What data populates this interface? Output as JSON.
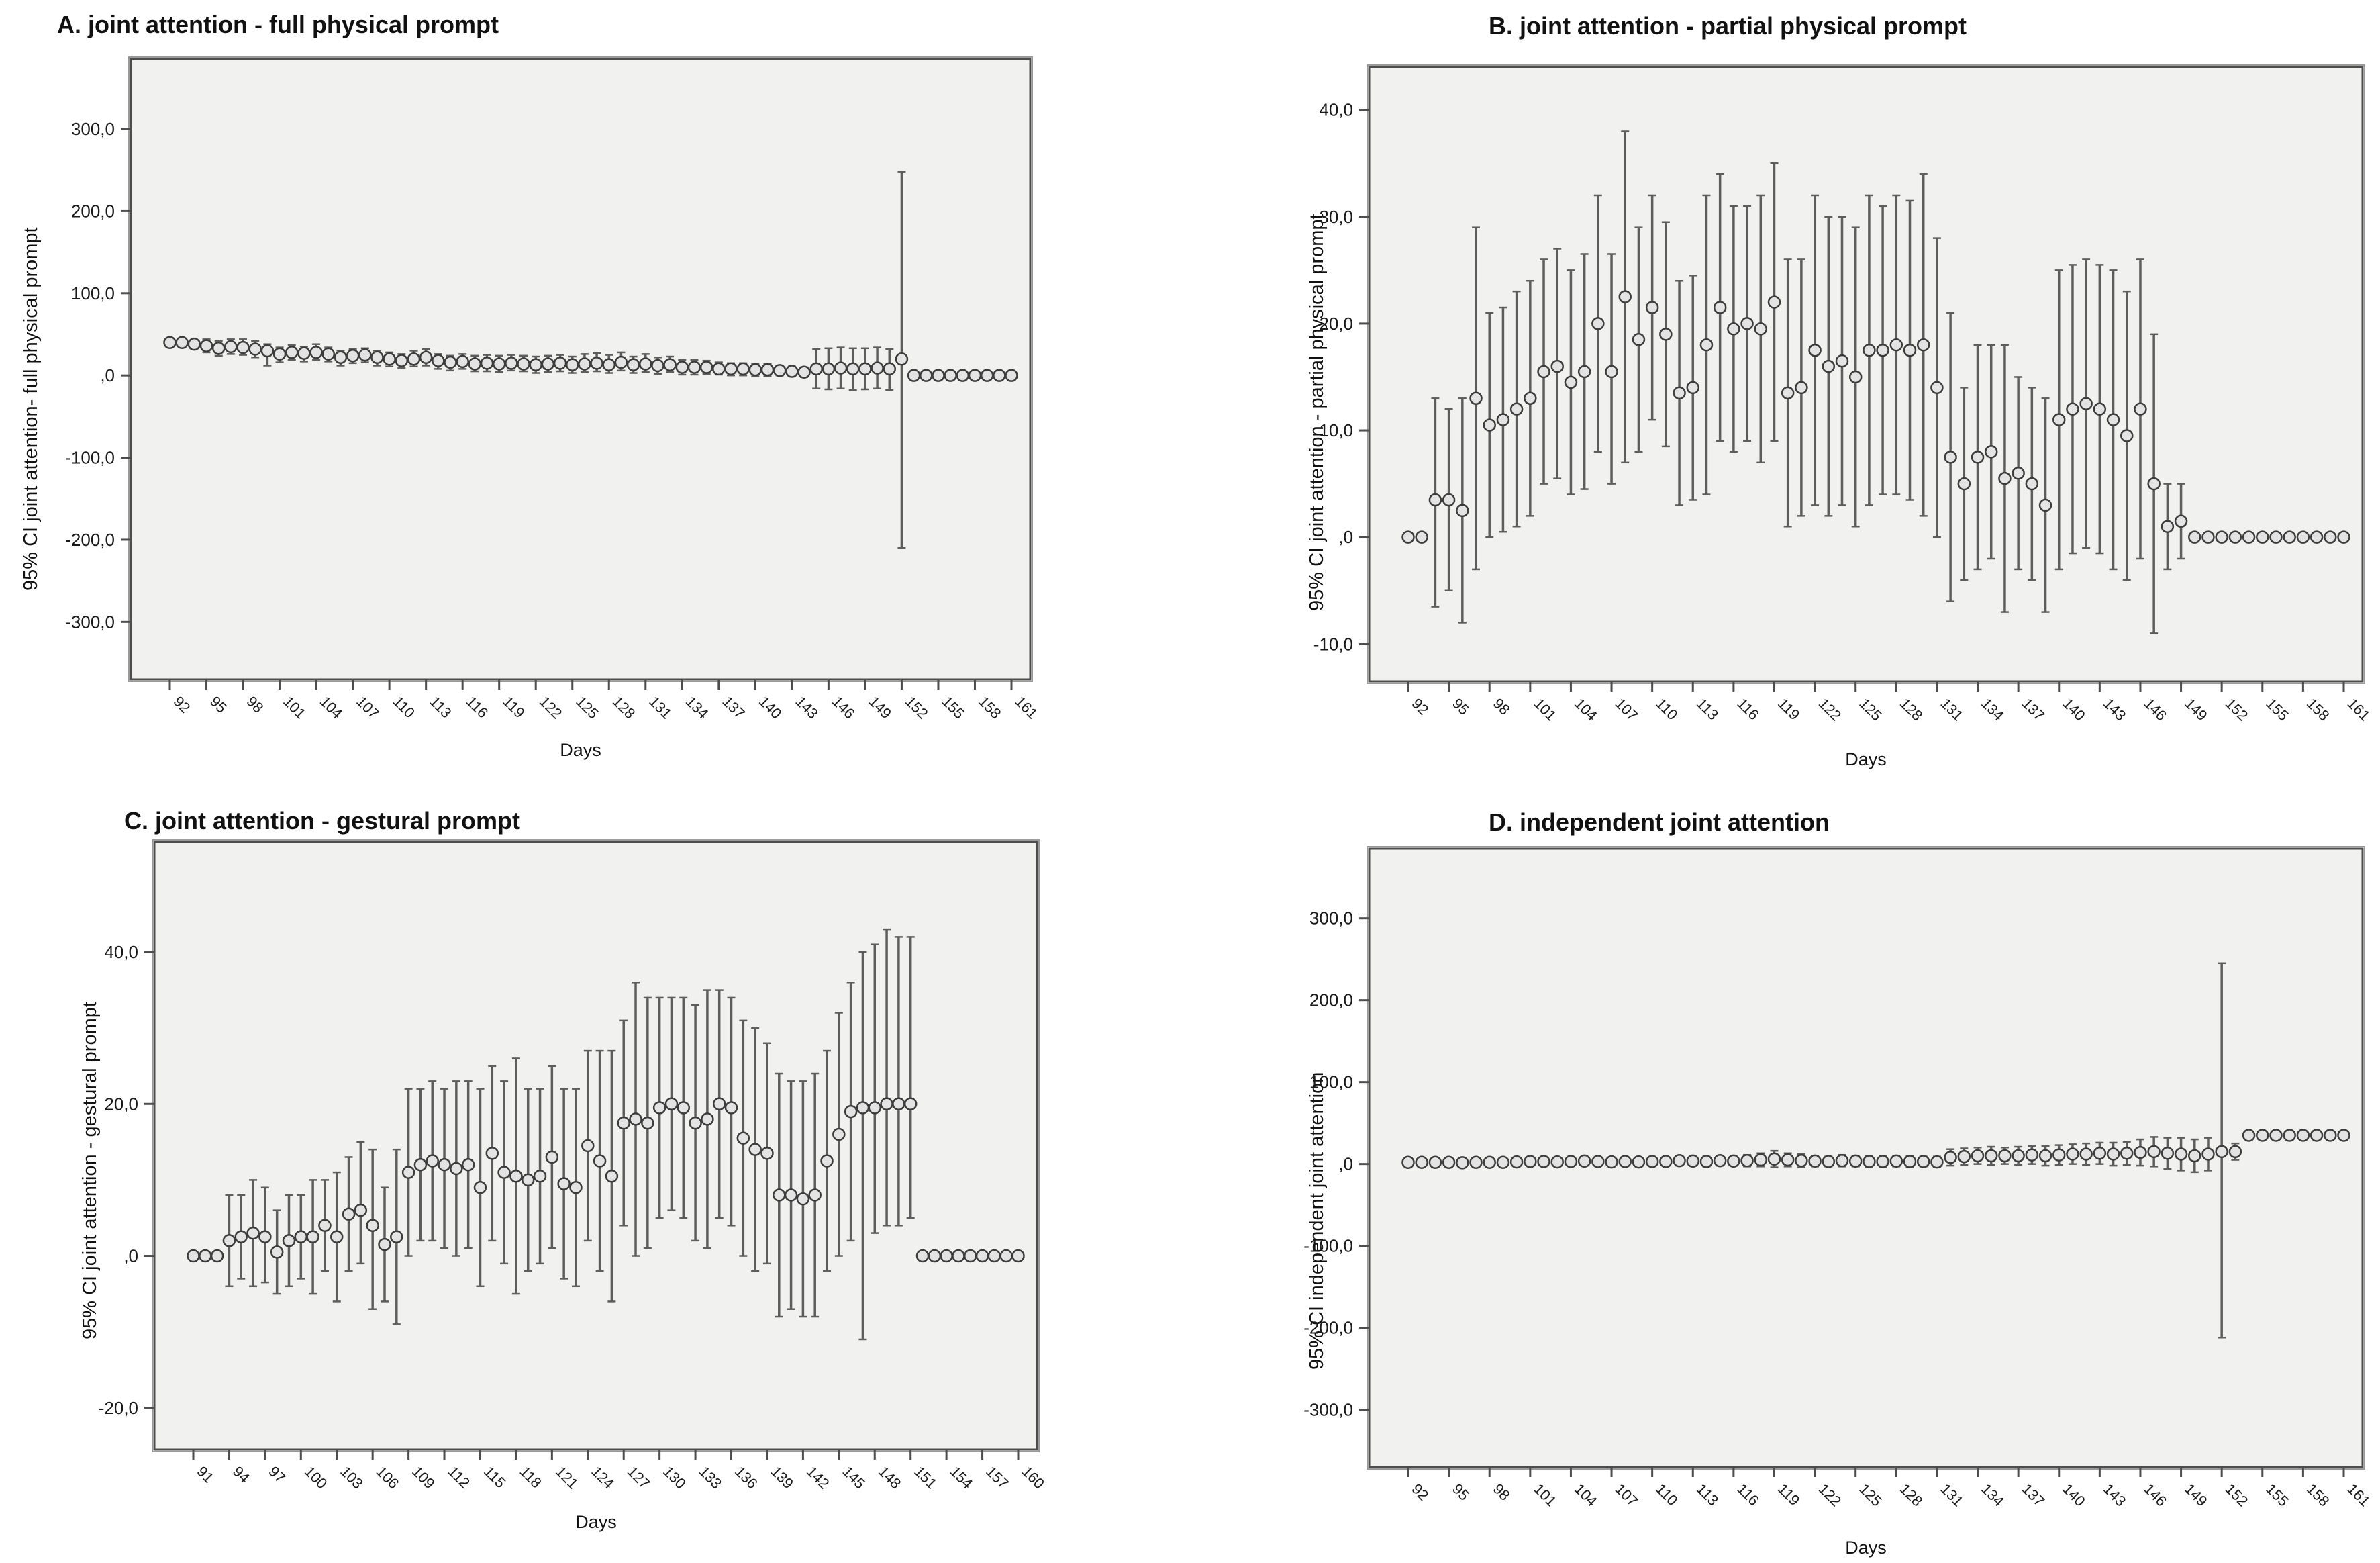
{
  "figure": {
    "kind": "spss-errorbar-figure",
    "background": "#ffffff"
  },
  "style": {
    "plot_bg": "#f1f1f0",
    "frame": "#4d4d4d",
    "bar": "#5d5d5d",
    "marker_fill": "#e3e3e3",
    "marker_stroke": "#3c3c3c",
    "text": "#1a1a1a"
  },
  "chart_data": [
    {
      "type": "errorbar",
      "panel": "A",
      "title": "A. joint attention - full physical prompt",
      "ylabel": "95% CI joint attention- full physical prompt",
      "xlabel": "Days",
      "ylim": [
        -370,
        385
      ],
      "grid": false,
      "legend": "none",
      "yticks": [
        {
          "v": 300,
          "label": "300,0"
        },
        {
          "v": 200,
          "label": "200,0"
        },
        {
          "v": 100,
          "label": "100,0"
        },
        {
          "v": 0,
          "label": ",0"
        },
        {
          "v": -100,
          "label": "-100,0"
        },
        {
          "v": -200,
          "label": "-200,0"
        },
        {
          "v": -300,
          "label": "-300,0"
        }
      ],
      "tick_every": 3,
      "days": [
        92,
        93,
        94,
        95,
        96,
        97,
        98,
        99,
        100,
        101,
        102,
        103,
        104,
        105,
        106,
        107,
        108,
        109,
        110,
        111,
        112,
        113,
        114,
        115,
        116,
        117,
        118,
        119,
        120,
        121,
        122,
        123,
        124,
        125,
        126,
        127,
        128,
        129,
        130,
        131,
        132,
        133,
        134,
        135,
        136,
        137,
        138,
        139,
        140,
        141,
        142,
        143,
        144,
        145,
        146,
        147,
        148,
        149,
        150,
        151,
        152,
        153,
        154,
        155,
        156,
        157,
        158,
        159,
        160,
        161
      ],
      "mean": [
        40,
        40,
        38,
        36,
        33,
        35,
        34,
        32,
        30,
        26,
        28,
        27,
        28,
        26,
        22,
        24,
        25,
        22,
        20,
        18,
        20,
        22,
        18,
        16,
        17,
        14,
        15,
        14,
        15,
        14,
        13,
        14,
        15,
        13,
        14,
        15,
        13,
        16,
        13,
        14,
        12,
        13,
        10,
        10,
        10,
        8,
        8,
        8,
        7,
        7,
        6,
        5,
        4,
        8,
        8,
        9,
        8,
        8,
        9,
        8,
        20,
        0,
        0,
        0,
        0,
        0,
        0,
        0,
        0,
        0
      ],
      "lo": [
        40,
        40,
        38,
        28,
        24,
        26,
        25,
        22,
        12,
        16,
        19,
        17,
        19,
        17,
        12,
        15,
        16,
        12,
        11,
        9,
        11,
        12,
        8,
        6,
        8,
        5,
        5,
        4,
        6,
        5,
        3,
        4,
        5,
        3,
        4,
        5,
        3,
        6,
        3,
        4,
        2,
        4,
        1,
        1,
        2,
        1,
        0,
        0,
        -1,
        -1,
        0,
        -1,
        -2,
        -16,
        -17,
        -16,
        -18,
        -17,
        -16,
        -18,
        -210,
        0,
        0,
        0,
        0,
        0,
        0,
        0,
        0,
        0
      ],
      "hi": [
        40,
        40,
        38,
        44,
        42,
        44,
        44,
        42,
        38,
        34,
        37,
        35,
        38,
        34,
        30,
        32,
        33,
        30,
        28,
        26,
        30,
        32,
        26,
        24,
        26,
        24,
        25,
        24,
        25,
        24,
        23,
        24,
        25,
        23,
        26,
        27,
        25,
        28,
        23,
        26,
        22,
        23,
        19,
        19,
        18,
        16,
        15,
        15,
        14,
        14,
        12,
        11,
        10,
        32,
        33,
        34,
        33,
        33,
        34,
        32,
        248,
        0,
        0,
        0,
        0,
        0,
        0,
        0,
        0,
        0
      ]
    },
    {
      "type": "errorbar",
      "panel": "B",
      "title": "B. joint attention - partial physical prompt",
      "ylabel": "95% CI joint attention - partial physical prompt",
      "xlabel": "Days",
      "ylim": [
        -13.5,
        44
      ],
      "grid": false,
      "legend": "none",
      "yticks": [
        {
          "v": 40,
          "label": "40,0"
        },
        {
          "v": 30,
          "label": "30,0"
        },
        {
          "v": 20,
          "label": "20,0"
        },
        {
          "v": 10,
          "label": "10,0"
        },
        {
          "v": 0,
          "label": ",0"
        },
        {
          "v": -10,
          "label": "-10,0"
        }
      ],
      "tick_every": 3,
      "days": [
        92,
        93,
        94,
        95,
        96,
        97,
        98,
        99,
        100,
        101,
        102,
        103,
        104,
        105,
        106,
        107,
        108,
        109,
        110,
        111,
        112,
        113,
        114,
        115,
        116,
        117,
        118,
        119,
        120,
        121,
        122,
        123,
        124,
        125,
        126,
        127,
        128,
        129,
        130,
        131,
        132,
        133,
        134,
        135,
        136,
        137,
        138,
        139,
        140,
        141,
        142,
        143,
        144,
        145,
        146,
        147,
        148,
        149,
        150,
        151,
        152,
        153,
        154,
        155,
        156,
        157,
        158,
        159,
        160,
        161
      ],
      "mean": [
        0,
        0,
        3.5,
        3.5,
        2.5,
        13,
        10.5,
        11,
        12,
        13,
        15.5,
        16,
        14.5,
        15.5,
        20,
        15.5,
        22.5,
        18.5,
        21.5,
        19,
        13.5,
        14,
        18,
        21.5,
        19.5,
        20,
        19.5,
        22,
        13.5,
        14,
        17.5,
        16,
        16.5,
        15,
        17.5,
        17.5,
        18,
        17.5,
        18,
        14,
        7.5,
        5,
        7.5,
        8,
        5.5,
        6,
        5,
        3,
        11,
        12,
        12.5,
        12,
        11,
        9.5,
        12,
        5,
        1,
        1.5,
        0,
        0,
        0,
        0,
        0,
        0,
        0,
        0,
        0,
        0,
        0,
        0
      ],
      "lo": [
        0,
        0,
        -6.5,
        -5,
        -8,
        -3,
        0,
        0.5,
        1,
        2,
        5,
        5.5,
        4,
        4.5,
        8,
        5,
        7,
        8,
        11,
        8.5,
        3,
        3.5,
        4,
        9,
        8,
        9,
        7,
        9,
        1,
        2,
        3,
        2,
        3,
        1,
        3,
        4,
        4,
        3.5,
        2,
        0,
        -6,
        -4,
        -3,
        -2,
        -7,
        -3,
        -4,
        -7,
        -3,
        -1.5,
        -1,
        -1.5,
        -3,
        -4,
        -2,
        -9,
        -3,
        -2,
        0,
        0,
        0,
        0,
        0,
        0,
        0,
        0,
        0,
        0,
        0,
        0
      ],
      "hi": [
        0,
        0,
        13,
        12,
        13,
        29,
        21,
        21.5,
        23,
        24,
        26,
        27,
        25,
        26.5,
        32,
        26.5,
        38,
        29,
        32,
        29.5,
        24,
        24.5,
        32,
        34,
        31,
        31,
        32,
        35,
        26,
        26,
        32,
        30,
        30,
        29,
        32,
        31,
        32,
        31.5,
        34,
        28,
        21,
        14,
        18,
        18,
        18,
        15,
        14,
        13,
        25,
        25.5,
        26,
        25.5,
        25,
        23,
        26,
        19,
        5,
        5,
        0,
        0,
        0,
        0,
        0,
        0,
        0,
        0,
        0,
        0,
        0,
        0
      ]
    },
    {
      "type": "errorbar",
      "panel": "C",
      "title": "C. joint attention - gestural prompt",
      "ylabel": "95% CI joint attention - gestural prompt",
      "xlabel": "Days",
      "ylim": [
        -25.5,
        54.5
      ],
      "grid": false,
      "legend": "none",
      "yticks": [
        {
          "v": 40,
          "label": "40,0"
        },
        {
          "v": 20,
          "label": "20,0"
        },
        {
          "v": 0,
          "label": ",0"
        },
        {
          "v": -20,
          "label": "-20,0"
        }
      ],
      "tick_every": 3,
      "days": [
        91,
        92,
        93,
        94,
        95,
        96,
        97,
        98,
        99,
        100,
        101,
        102,
        103,
        104,
        105,
        106,
        107,
        108,
        109,
        110,
        111,
        112,
        113,
        114,
        115,
        116,
        117,
        118,
        119,
        120,
        121,
        122,
        123,
        124,
        125,
        126,
        127,
        128,
        129,
        130,
        131,
        132,
        133,
        134,
        135,
        136,
        137,
        138,
        139,
        140,
        141,
        142,
        143,
        144,
        145,
        146,
        147,
        148,
        149,
        150,
        151,
        152,
        153,
        154,
        155,
        156,
        157,
        158,
        159,
        160
      ],
      "mean": [
        0,
        0,
        0,
        2,
        2.5,
        3,
        2.5,
        0.5,
        2,
        2.5,
        2.5,
        4,
        2.5,
        5.5,
        6,
        4,
        1.5,
        2.5,
        11,
        12,
        12.5,
        12,
        11.5,
        12,
        9,
        13.5,
        11,
        10.5,
        10,
        10.5,
        13,
        9.5,
        9,
        14.5,
        12.5,
        10.5,
        17.5,
        18,
        17.5,
        19.5,
        20,
        19.5,
        17.5,
        18,
        20,
        19.5,
        15.5,
        14,
        13.5,
        8,
        8,
        7.5,
        8,
        12.5,
        16,
        19,
        19.5,
        19.5,
        20,
        20,
        20,
        0,
        0,
        0,
        0,
        0,
        0,
        0,
        0,
        0
      ],
      "lo": [
        0,
        0,
        0,
        -4,
        -3,
        -4,
        -3.5,
        -5,
        -4,
        -3,
        -5,
        -2,
        -6,
        -2,
        -1,
        -7,
        -6,
        -9,
        0,
        2,
        2,
        1,
        0,
        1,
        -4,
        2,
        -1,
        -5,
        -2,
        -1,
        1,
        -3,
        -4,
        2,
        -2,
        -6,
        4,
        0,
        1,
        5,
        6,
        5,
        2,
        1,
        5,
        4,
        0,
        -2,
        -1,
        -8,
        -7,
        -8,
        -8,
        -2,
        0,
        2,
        -11,
        3,
        4,
        4,
        5,
        0,
        0,
        0,
        0,
        0,
        0,
        0,
        0,
        0
      ],
      "hi": [
        0,
        0,
        0,
        8,
        8,
        10,
        9,
        6,
        8,
        8,
        10,
        10,
        11,
        13,
        15,
        14,
        9,
        14,
        22,
        22,
        23,
        22,
        23,
        23,
        22,
        25,
        23,
        26,
        22,
        22,
        25,
        22,
        22,
        27,
        27,
        27,
        31,
        36,
        34,
        34,
        34,
        34,
        33,
        35,
        35,
        34,
        31,
        30,
        28,
        24,
        23,
        23,
        24,
        27,
        32,
        36,
        40,
        41,
        43,
        42,
        42,
        0,
        0,
        0,
        0,
        0,
        0,
        0,
        0,
        0
      ]
    },
    {
      "type": "errorbar",
      "panel": "D",
      "title": "D. independent joint attention",
      "ylabel": "95% CI independent  joint attention",
      "xlabel": "Days",
      "ylim": [
        -370,
        385
      ],
      "grid": false,
      "legend": "none",
      "yticks": [
        {
          "v": 300,
          "label": "300,0"
        },
        {
          "v": 200,
          "label": "200,0"
        },
        {
          "v": 100,
          "label": "100,0"
        },
        {
          "v": 0,
          "label": ",0"
        },
        {
          "v": -100,
          "label": "-100,0"
        },
        {
          "v": -200,
          "label": "-200,0"
        },
        {
          "v": -300,
          "label": "-300,0"
        }
      ],
      "tick_every": 3,
      "days": [
        92,
        93,
        94,
        95,
        96,
        97,
        98,
        99,
        100,
        101,
        102,
        103,
        104,
        105,
        106,
        107,
        108,
        109,
        110,
        111,
        112,
        113,
        114,
        115,
        116,
        117,
        118,
        119,
        120,
        121,
        122,
        123,
        124,
        125,
        126,
        127,
        128,
        129,
        130,
        131,
        132,
        133,
        134,
        135,
        136,
        137,
        138,
        139,
        140,
        141,
        142,
        143,
        144,
        145,
        146,
        147,
        148,
        149,
        150,
        151,
        152,
        153,
        154,
        155,
        156,
        157,
        158,
        159,
        160,
        161
      ],
      "mean": [
        2,
        2,
        2,
        2,
        1.5,
        2,
        2,
        2,
        2.5,
        3,
        3,
        2.5,
        3,
        3.5,
        3,
        2.5,
        3,
        2.5,
        3,
        3,
        4,
        3.5,
        3,
        4,
        3.5,
        4,
        5,
        6,
        5,
        4,
        3.5,
        3,
        4,
        3.5,
        3,
        3,
        3.5,
        3,
        3,
        2.5,
        8,
        9,
        10,
        10,
        10,
        10,
        11,
        10,
        11,
        12,
        12,
        13,
        12,
        13,
        14,
        15,
        13,
        12,
        10,
        12,
        15,
        15,
        35,
        35,
        35,
        35,
        35,
        35,
        35,
        35
      ],
      "lo": [
        2,
        2,
        2,
        2,
        1.5,
        2,
        0,
        0,
        0,
        0,
        -1,
        0,
        0,
        0,
        -1,
        -1,
        0,
        -1,
        -1,
        -1,
        -2,
        -2,
        -3,
        -2,
        -2,
        -3,
        -3,
        -4,
        -3,
        -4,
        -3,
        -3,
        -3,
        -3,
        -4,
        -4,
        -3,
        -4,
        -3,
        -4,
        -2,
        -1,
        0,
        -1,
        0,
        -1,
        0,
        -2,
        -1,
        0,
        -1,
        0,
        -2,
        -1,
        -2,
        -3,
        -6,
        -8,
        -10,
        -8,
        -212,
        5,
        35,
        35,
        35,
        35,
        35,
        35,
        35,
        35
      ],
      "hi": [
        2,
        2,
        2,
        2,
        1.5,
        2,
        4,
        4,
        5,
        6,
        7,
        5,
        6,
        7,
        7,
        6,
        6,
        6,
        7,
        7,
        10,
        9,
        9,
        10,
        9,
        11,
        13,
        16,
        13,
        12,
        10,
        9,
        11,
        10,
        10,
        10,
        10,
        10,
        9,
        9,
        18,
        19,
        20,
        21,
        20,
        21,
        22,
        22,
        23,
        24,
        25,
        26,
        26,
        27,
        30,
        33,
        32,
        32,
        30,
        32,
        245,
        25,
        35,
        35,
        35,
        35,
        35,
        35,
        35,
        35
      ]
    }
  ]
}
